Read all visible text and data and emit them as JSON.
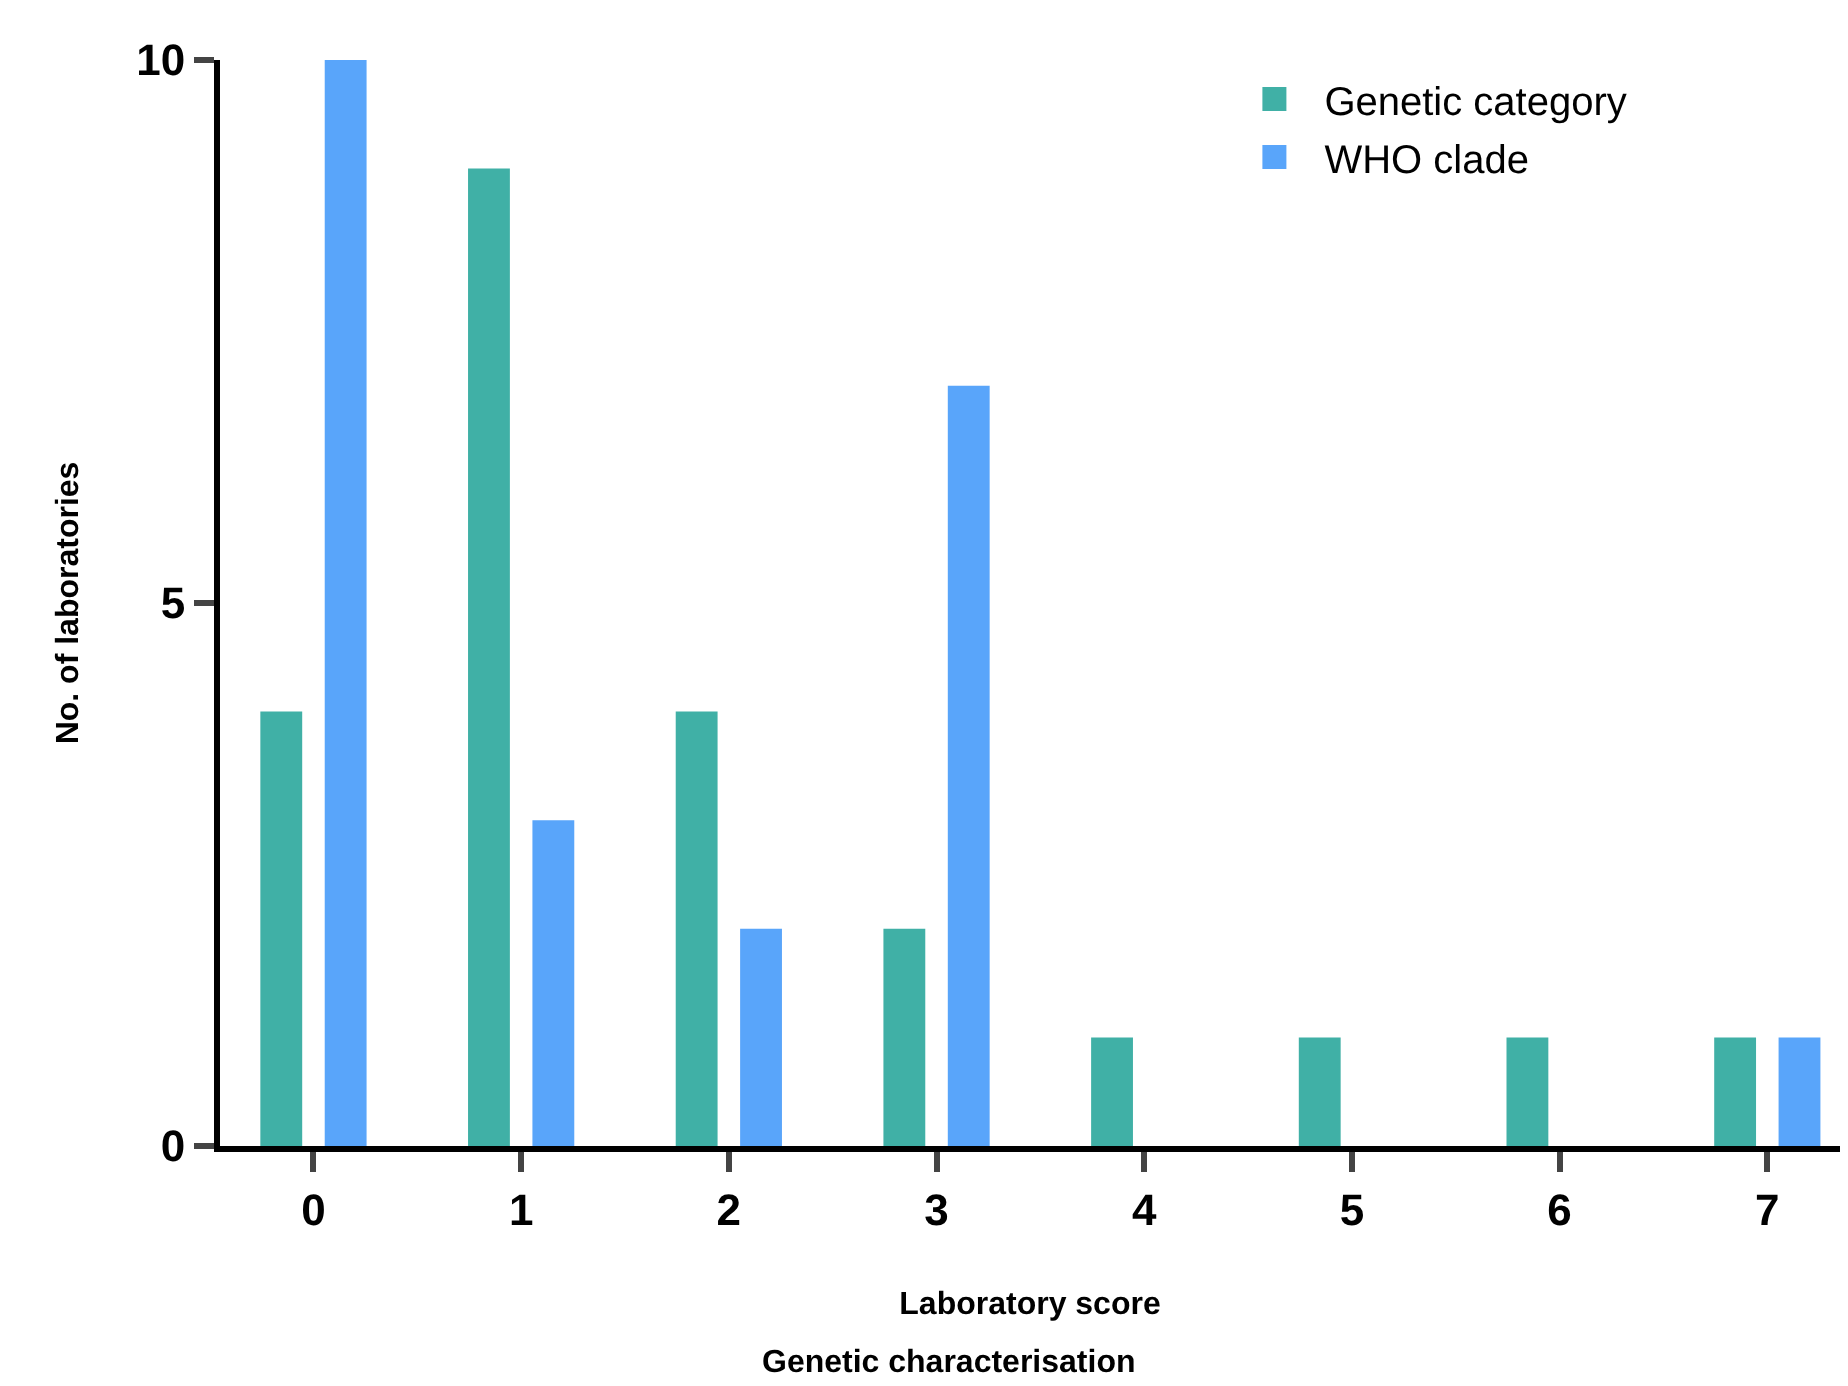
{
  "chart_data": {
    "type": "bar",
    "xlabel": "Laboratory score",
    "ylabel": "No. of laboratories",
    "annotations": [
      "Genetic characterisation"
    ],
    "categories": [
      "0",
      "1",
      "2",
      "3",
      "4",
      "5",
      "6",
      "7"
    ],
    "series": [
      {
        "name": "Genetic category",
        "color": "#40b0a6",
        "values": [
          4,
          9,
          4,
          2,
          1,
          1,
          1,
          1
        ]
      },
      {
        "name": "WHO clade",
        "color": "#59a5fa",
        "values": [
          10,
          3,
          2,
          7,
          0,
          0,
          0,
          1
        ]
      }
    ],
    "ylim": [
      0,
      10
    ],
    "yticks": [
      0,
      5,
      10
    ],
    "legend": "top right"
  }
}
